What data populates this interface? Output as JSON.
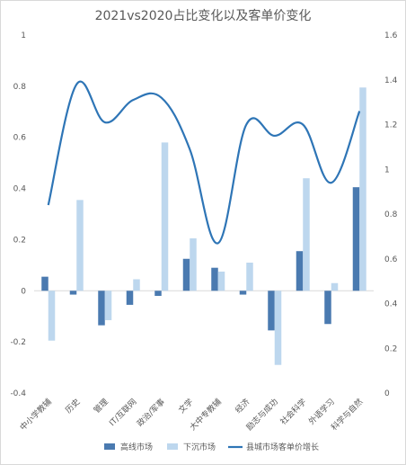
{
  "chart_data": {
    "type": "bar",
    "title": "2021vs2020占比变化以及客单价变化",
    "categories": [
      "中小学教辅",
      "历史",
      "管理",
      "IT/互联网",
      "政治/军事",
      "文学",
      "大中专教辅",
      "经济",
      "励志与成功",
      "社会科学",
      "外语学习",
      "科学与自然"
    ],
    "series": [
      {
        "name": "高线市场",
        "axis": "left",
        "type": "bar",
        "color": "#4a7ab0",
        "values": [
          0.055,
          -0.015,
          -0.135,
          -0.055,
          -0.02,
          0.125,
          0.09,
          -0.015,
          -0.155,
          0.155,
          -0.13,
          0.405
        ]
      },
      {
        "name": "下沉市场",
        "axis": "left",
        "type": "bar",
        "color": "#bdd7ee",
        "values": [
          -0.195,
          0.355,
          -0.115,
          0.045,
          0.58,
          0.205,
          0.075,
          0.11,
          -0.29,
          0.44,
          0.03,
          0.795
        ]
      },
      {
        "name": "县城市场客单价增长",
        "axis": "right",
        "type": "line",
        "color": "#2e75b6",
        "values": [
          0.84,
          1.38,
          1.21,
          1.31,
          1.32,
          1.09,
          0.67,
          1.2,
          1.15,
          1.2,
          0.94,
          1.26
        ]
      }
    ],
    "y_left": {
      "min": -0.4,
      "max": 1,
      "step": 0.2,
      "ticks": [
        "-0.4",
        "-0.2",
        "0",
        "0.2",
        "0.4",
        "0.6",
        "0.8",
        "1"
      ]
    },
    "y_right": {
      "min": 0,
      "max": 1.6,
      "step": 0.2,
      "ticks": [
        "0",
        "0.2",
        "0.4",
        "0.6",
        "0.8",
        "1",
        "1.2",
        "1.4",
        "1.6"
      ]
    },
    "grid": false,
    "legend": "bottom"
  }
}
